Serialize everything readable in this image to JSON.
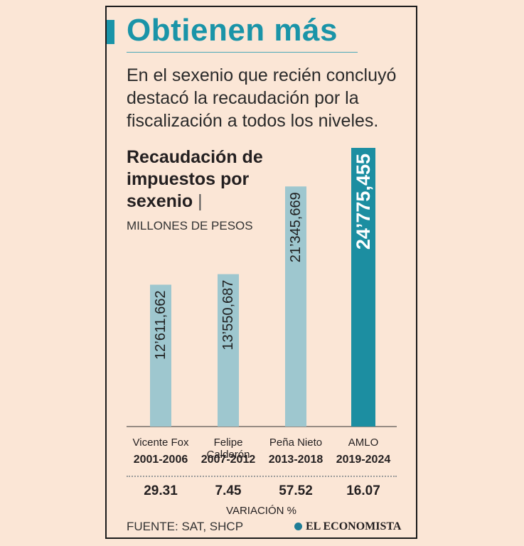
{
  "title": "Obtienen más",
  "subtitle": "En el sexenio que recién concluyó destacó la recaudación por la fiscalización a todos los niveles.",
  "colors": {
    "accent": "#1a94a8",
    "bar": "#9ec7cf",
    "bar_highlight": "#1c8ea1",
    "background": "#fbe6d6"
  },
  "chart_data": {
    "type": "bar",
    "title": "Recaudación de impuestos por sexenio",
    "unit": "MILLONES DE PESOS",
    "categories": [
      {
        "name": "Vicente Fox",
        "years": "2001-2006"
      },
      {
        "name": "Felipe Calderón",
        "years": "2007-2012"
      },
      {
        "name": "Peña Nieto",
        "years": "2013-2018"
      },
      {
        "name": "AMLO",
        "years": "2019-2024"
      }
    ],
    "values": [
      12611662,
      13550687,
      21345669,
      24775455
    ],
    "value_labels": [
      "12’611,662",
      "13’550,687",
      "21’345,669",
      "24’775,455"
    ],
    "highlight_index": 3,
    "ylim": [
      0,
      24775455
    ],
    "variation_label": "VARIACIÓN %",
    "variation_values": [
      "29.31",
      "7.45",
      "57.52",
      "16.07"
    ]
  },
  "footer": {
    "source": "FUENTE: SAT, SHCP",
    "brand": "EL ECONOMISTA"
  }
}
